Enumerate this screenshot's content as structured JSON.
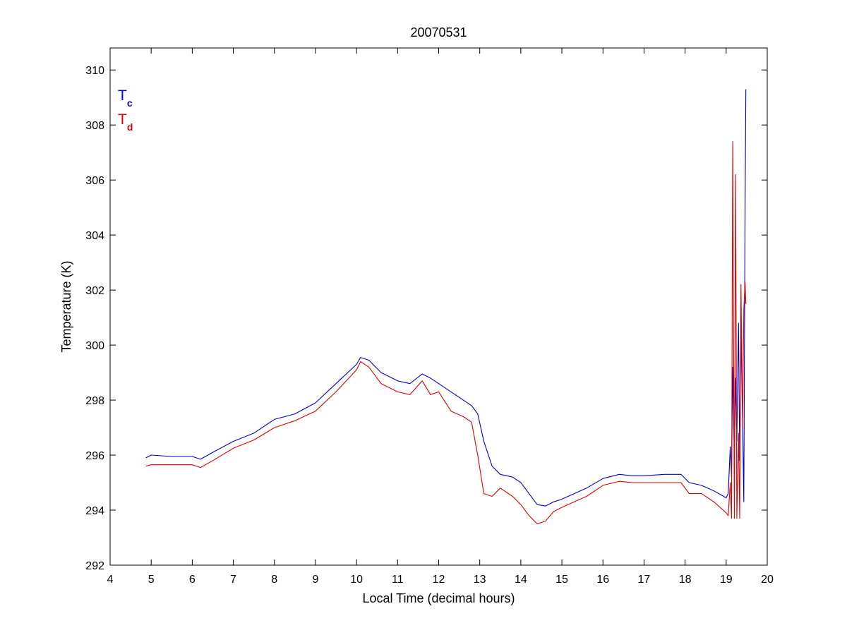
{
  "chart_data": {
    "type": "line",
    "title": "20070531",
    "xlabel": "Local Time (decimal hours)",
    "ylabel": "Temperature (K)",
    "xlim": [
      4,
      20
    ],
    "ylim": [
      292,
      310.8
    ],
    "xticks": [
      4,
      5,
      6,
      7,
      8,
      9,
      10,
      11,
      12,
      13,
      14,
      15,
      16,
      17,
      18,
      19,
      20
    ],
    "yticks": [
      292,
      294,
      296,
      298,
      300,
      302,
      304,
      306,
      308,
      310
    ],
    "grid": false,
    "legend_placement": "top-left",
    "series": [
      {
        "name": "T_c",
        "legend_main": "T",
        "legend_sub": "c",
        "color": "#0000cc",
        "x": [
          4.87,
          5.0,
          5.5,
          6.0,
          6.2,
          6.5,
          7.0,
          7.5,
          8.0,
          8.5,
          9.0,
          9.5,
          10.0,
          10.1,
          10.3,
          10.6,
          11.0,
          11.3,
          11.6,
          11.8,
          12.0,
          12.3,
          12.6,
          12.8,
          12.95,
          13.1,
          13.3,
          13.5,
          13.8,
          14.0,
          14.2,
          14.4,
          14.6,
          14.8,
          15.0,
          15.3,
          15.6,
          16.0,
          16.4,
          16.7,
          17.0,
          17.5,
          17.9,
          18.1,
          18.4,
          18.7,
          19.0,
          19.05,
          19.1,
          19.13,
          19.16,
          19.2,
          19.23,
          19.26,
          19.3,
          19.33,
          19.36,
          19.4,
          19.43,
          19.46,
          19.48
        ],
        "y": [
          295.9,
          296.0,
          295.95,
          295.95,
          295.85,
          296.1,
          296.5,
          296.8,
          297.3,
          297.5,
          297.9,
          298.6,
          299.3,
          299.55,
          299.45,
          299.0,
          298.7,
          298.6,
          298.95,
          298.8,
          298.6,
          298.3,
          298.0,
          297.8,
          297.5,
          296.5,
          295.6,
          295.3,
          295.2,
          295.0,
          294.6,
          294.2,
          294.15,
          294.3,
          294.4,
          294.6,
          294.8,
          295.15,
          295.3,
          295.25,
          295.25,
          295.3,
          295.3,
          295.0,
          294.9,
          294.7,
          294.45,
          294.6,
          296.3,
          295.2,
          299.2,
          296.0,
          298.8,
          296.5,
          300.8,
          295.8,
          300.4,
          297.2,
          294.3,
          305.0,
          309.3
        ]
      },
      {
        "name": "T_d",
        "legend_main": "T",
        "legend_sub": "d",
        "color": "#dd0000",
        "x": [
          4.87,
          5.0,
          5.5,
          6.0,
          6.2,
          6.5,
          7.0,
          7.5,
          8.0,
          8.5,
          9.0,
          9.5,
          10.0,
          10.1,
          10.3,
          10.6,
          11.0,
          11.3,
          11.6,
          11.8,
          12.0,
          12.3,
          12.6,
          12.8,
          12.95,
          13.1,
          13.3,
          13.5,
          13.8,
          14.0,
          14.2,
          14.4,
          14.6,
          14.8,
          15.0,
          15.3,
          15.6,
          16.0,
          16.4,
          16.7,
          17.0,
          17.5,
          17.9,
          18.1,
          18.4,
          18.7,
          19.0,
          19.05,
          19.1,
          19.13,
          19.16,
          19.2,
          19.23,
          19.26,
          19.3,
          19.33,
          19.36,
          19.4,
          19.43,
          19.46,
          19.48
        ],
        "y": [
          295.6,
          295.65,
          295.65,
          295.65,
          295.55,
          295.8,
          296.25,
          296.55,
          297.0,
          297.25,
          297.6,
          298.3,
          299.1,
          299.4,
          299.2,
          298.6,
          298.3,
          298.2,
          298.7,
          298.2,
          298.3,
          297.6,
          297.4,
          297.2,
          296.0,
          294.6,
          294.5,
          294.8,
          294.5,
          294.2,
          293.8,
          293.5,
          293.6,
          293.95,
          294.1,
          294.3,
          294.5,
          294.9,
          295.05,
          295.0,
          295.0,
          295.0,
          295.0,
          294.6,
          294.6,
          294.3,
          293.9,
          293.8,
          295.0,
          293.7,
          307.4,
          293.7,
          306.2,
          293.7,
          296.8,
          293.7,
          302.2,
          297.0,
          301.3,
          302.3,
          301.5
        ]
      }
    ]
  }
}
